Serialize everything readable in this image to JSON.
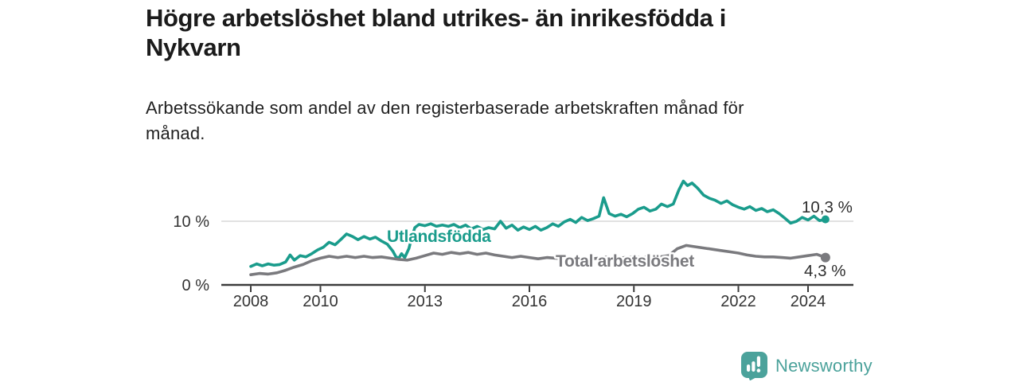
{
  "header": {
    "title_lines": [
      "Högre arbetslöshet bland utrikes- än inrikesfödda i",
      "Nykvarn"
    ],
    "subtitle_lines": [
      "Arbetssökande som andel av den registerbaserade arbetskraften månad för",
      "månad."
    ]
  },
  "footer": {
    "brand": "Newsworthy",
    "brand_color": "#4ba29b",
    "brand_icon": "speech-bubble-bar-chart-exclamation"
  },
  "colors": {
    "accent_teal": "#1a9c8c",
    "line_gray": "#7a7a7e",
    "axis": "#3c3c3c",
    "tick_text": "#333333",
    "gridline": "#cfcfcf",
    "value_label": "#2d2d2d"
  },
  "chart_data": {
    "type": "line",
    "title": "Högre arbetslöshet bland utrikes- än inrikesfödda i Nykvarn",
    "subtitle": "Arbetssökande som andel av den registerbaserade arbetskraften månad för månad.",
    "xlabel": "",
    "ylabel": "",
    "xlim": [
      2007.15,
      2025.3
    ],
    "ylim": [
      0,
      17.5
    ],
    "grid": "horizontal line at 10% only",
    "legend_position": "inline labels on lines",
    "x_ticks": [
      2008,
      2010,
      2013,
      2016,
      2019,
      2022,
      2024
    ],
    "y_ticks": [
      {
        "value": 10,
        "label": "10 %"
      },
      {
        "value": 0,
        "label": "0 %"
      }
    ],
    "series": [
      {
        "name": "Utlandsfödda",
        "color": "#1a9c8c",
        "end_label": "10,3 %",
        "end_value": 10.3,
        "points": [
          [
            2008.0,
            2.9
          ],
          [
            2008.17,
            3.3
          ],
          [
            2008.33,
            3.0
          ],
          [
            2008.5,
            3.3
          ],
          [
            2008.67,
            3.1
          ],
          [
            2008.83,
            3.2
          ],
          [
            2009.0,
            3.6
          ],
          [
            2009.13,
            4.7
          ],
          [
            2009.25,
            3.9
          ],
          [
            2009.42,
            4.6
          ],
          [
            2009.58,
            4.4
          ],
          [
            2009.75,
            4.9
          ],
          [
            2009.92,
            5.5
          ],
          [
            2010.08,
            5.9
          ],
          [
            2010.25,
            6.7
          ],
          [
            2010.42,
            6.3
          ],
          [
            2010.58,
            7.1
          ],
          [
            2010.75,
            8.0
          ],
          [
            2010.92,
            7.6
          ],
          [
            2011.08,
            7.1
          ],
          [
            2011.25,
            7.6
          ],
          [
            2011.42,
            7.2
          ],
          [
            2011.58,
            7.5
          ],
          [
            2011.75,
            6.9
          ],
          [
            2011.92,
            6.4
          ],
          [
            2012.08,
            5.3
          ],
          [
            2012.17,
            4.4
          ],
          [
            2012.25,
            4.2
          ],
          [
            2012.33,
            4.9
          ],
          [
            2012.42,
            4.3
          ],
          [
            2012.54,
            5.7
          ],
          [
            2012.63,
            7.6
          ],
          [
            2012.71,
            9.0
          ],
          [
            2012.83,
            9.5
          ],
          [
            2013.0,
            9.3
          ],
          [
            2013.17,
            9.6
          ],
          [
            2013.33,
            9.2
          ],
          [
            2013.5,
            9.4
          ],
          [
            2013.67,
            9.2
          ],
          [
            2013.83,
            9.5
          ],
          [
            2014.0,
            9.0
          ],
          [
            2014.17,
            9.4
          ],
          [
            2014.33,
            8.8
          ],
          [
            2014.5,
            9.2
          ],
          [
            2014.67,
            8.7
          ],
          [
            2014.83,
            9.0
          ],
          [
            2015.0,
            8.8
          ],
          [
            2015.17,
            10.0
          ],
          [
            2015.33,
            8.9
          ],
          [
            2015.5,
            9.4
          ],
          [
            2015.67,
            8.6
          ],
          [
            2015.83,
            9.1
          ],
          [
            2016.0,
            8.7
          ],
          [
            2016.17,
            9.2
          ],
          [
            2016.33,
            8.6
          ],
          [
            2016.5,
            9.0
          ],
          [
            2016.67,
            9.6
          ],
          [
            2016.83,
            9.2
          ],
          [
            2017.0,
            9.9
          ],
          [
            2017.17,
            10.3
          ],
          [
            2017.33,
            9.8
          ],
          [
            2017.5,
            10.6
          ],
          [
            2017.67,
            10.1
          ],
          [
            2017.83,
            10.4
          ],
          [
            2018.0,
            10.8
          ],
          [
            2018.13,
            13.7
          ],
          [
            2018.29,
            11.2
          ],
          [
            2018.46,
            10.8
          ],
          [
            2018.63,
            11.1
          ],
          [
            2018.79,
            10.7
          ],
          [
            2018.96,
            11.2
          ],
          [
            2019.13,
            11.9
          ],
          [
            2019.29,
            12.2
          ],
          [
            2019.46,
            11.6
          ],
          [
            2019.63,
            11.9
          ],
          [
            2019.79,
            12.7
          ],
          [
            2019.96,
            12.3
          ],
          [
            2020.13,
            12.7
          ],
          [
            2020.29,
            14.9
          ],
          [
            2020.42,
            16.3
          ],
          [
            2020.54,
            15.6
          ],
          [
            2020.67,
            16.0
          ],
          [
            2020.83,
            15.2
          ],
          [
            2021.0,
            14.1
          ],
          [
            2021.17,
            13.6
          ],
          [
            2021.33,
            13.3
          ],
          [
            2021.5,
            12.8
          ],
          [
            2021.67,
            13.2
          ],
          [
            2021.83,
            12.6
          ],
          [
            2022.0,
            12.2
          ],
          [
            2022.17,
            11.9
          ],
          [
            2022.33,
            12.3
          ],
          [
            2022.5,
            11.7
          ],
          [
            2022.67,
            12.0
          ],
          [
            2022.83,
            11.5
          ],
          [
            2023.0,
            11.8
          ],
          [
            2023.17,
            11.2
          ],
          [
            2023.33,
            10.5
          ],
          [
            2023.5,
            9.7
          ],
          [
            2023.67,
            10.0
          ],
          [
            2023.83,
            10.6
          ],
          [
            2024.0,
            10.2
          ],
          [
            2024.17,
            10.8
          ],
          [
            2024.33,
            10.1
          ],
          [
            2024.5,
            10.3
          ]
        ]
      },
      {
        "name": "Total arbetslöshet",
        "color": "#7a7a7e",
        "end_label": "4,3 %",
        "end_value": 4.3,
        "points": [
          [
            2008.0,
            1.6
          ],
          [
            2008.25,
            1.8
          ],
          [
            2008.5,
            1.7
          ],
          [
            2008.75,
            1.9
          ],
          [
            2009.0,
            2.3
          ],
          [
            2009.25,
            2.8
          ],
          [
            2009.5,
            3.2
          ],
          [
            2009.75,
            3.8
          ],
          [
            2010.0,
            4.2
          ],
          [
            2010.25,
            4.5
          ],
          [
            2010.5,
            4.3
          ],
          [
            2010.75,
            4.5
          ],
          [
            2011.0,
            4.3
          ],
          [
            2011.25,
            4.5
          ],
          [
            2011.5,
            4.3
          ],
          [
            2011.75,
            4.4
          ],
          [
            2012.0,
            4.2
          ],
          [
            2012.25,
            4.0
          ],
          [
            2012.5,
            3.9
          ],
          [
            2012.75,
            4.2
          ],
          [
            2013.0,
            4.6
          ],
          [
            2013.25,
            5.0
          ],
          [
            2013.5,
            4.8
          ],
          [
            2013.75,
            5.1
          ],
          [
            2014.0,
            4.9
          ],
          [
            2014.25,
            5.1
          ],
          [
            2014.5,
            4.8
          ],
          [
            2014.75,
            5.0
          ],
          [
            2015.0,
            4.7
          ],
          [
            2015.25,
            4.5
          ],
          [
            2015.5,
            4.3
          ],
          [
            2015.75,
            4.5
          ],
          [
            2016.0,
            4.3
          ],
          [
            2016.25,
            4.1
          ],
          [
            2016.5,
            4.3
          ],
          [
            2016.75,
            4.2
          ],
          [
            2017.0,
            4.0
          ],
          [
            2017.25,
            3.8
          ],
          [
            2017.5,
            4.0
          ],
          [
            2017.75,
            4.1
          ],
          [
            2018.0,
            4.2
          ],
          [
            2018.25,
            4.4
          ],
          [
            2018.5,
            4.2
          ],
          [
            2018.75,
            4.3
          ],
          [
            2019.0,
            4.4
          ],
          [
            2019.25,
            4.3
          ],
          [
            2019.5,
            4.5
          ],
          [
            2019.75,
            4.4
          ],
          [
            2020.0,
            4.6
          ],
          [
            2020.25,
            5.7
          ],
          [
            2020.5,
            6.2
          ],
          [
            2020.75,
            6.0
          ],
          [
            2021.0,
            5.8
          ],
          [
            2021.25,
            5.6
          ],
          [
            2021.5,
            5.4
          ],
          [
            2021.75,
            5.2
          ],
          [
            2022.0,
            5.0
          ],
          [
            2022.25,
            4.7
          ],
          [
            2022.5,
            4.5
          ],
          [
            2022.75,
            4.4
          ],
          [
            2023.0,
            4.4
          ],
          [
            2023.25,
            4.3
          ],
          [
            2023.5,
            4.2
          ],
          [
            2023.75,
            4.4
          ],
          [
            2024.0,
            4.6
          ],
          [
            2024.25,
            4.8
          ],
          [
            2024.5,
            4.3
          ]
        ]
      }
    ]
  }
}
